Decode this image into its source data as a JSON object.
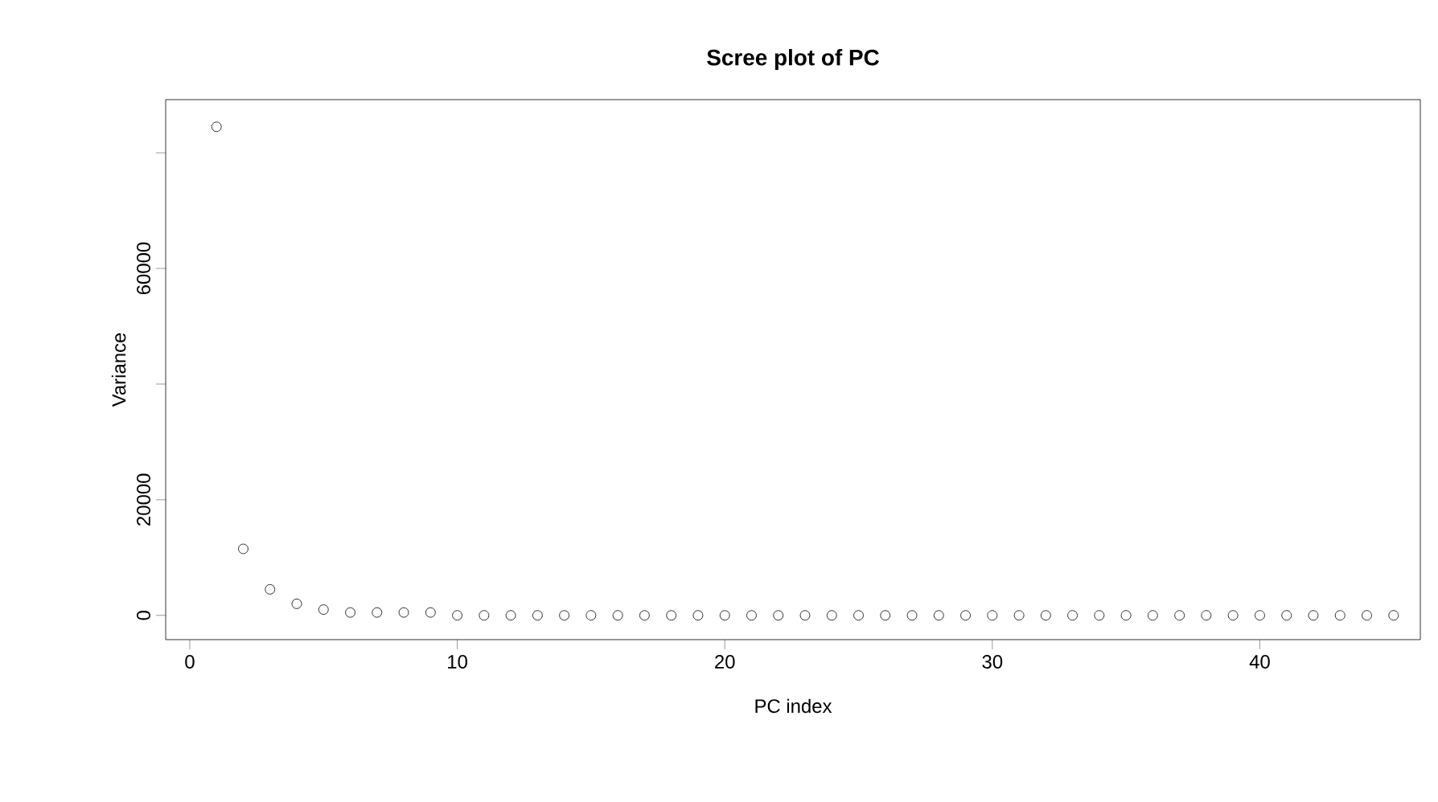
{
  "chart_data": {
    "type": "scatter",
    "title": "Scree plot of PC",
    "xlabel": "PC index",
    "ylabel": "Variance",
    "x": [
      1,
      2,
      3,
      4,
      5,
      6,
      7,
      8,
      9,
      10,
      11,
      12,
      13,
      14,
      15,
      16,
      17,
      18,
      19,
      20,
      21,
      22,
      23,
      24,
      25,
      26,
      27,
      28,
      29,
      30,
      31,
      32,
      33,
      34,
      35,
      36,
      37,
      38,
      39,
      40,
      41,
      42,
      43,
      44,
      45
    ],
    "values": [
      84500,
      11500,
      4500,
      2000,
      1000,
      500,
      500,
      500,
      500,
      0,
      0,
      0,
      0,
      0,
      0,
      0,
      0,
      0,
      0,
      0,
      0,
      0,
      0,
      0,
      0,
      0,
      0,
      0,
      0,
      0,
      0,
      0,
      0,
      0,
      0,
      0,
      0,
      0,
      0,
      0,
      0,
      0,
      0,
      0,
      0
    ],
    "color": "#000000",
    "marker": "circle",
    "grid": false,
    "xlim": [
      -0.9,
      46.0
    ],
    "ylim": [
      -4200,
      89200
    ],
    "xticks": [
      0,
      10,
      20,
      30,
      40
    ],
    "yticks": [
      0,
      20000,
      {
        "value": 40000,
        "label": null
      },
      60000,
      {
        "value": 80000,
        "label": null
      }
    ]
  }
}
